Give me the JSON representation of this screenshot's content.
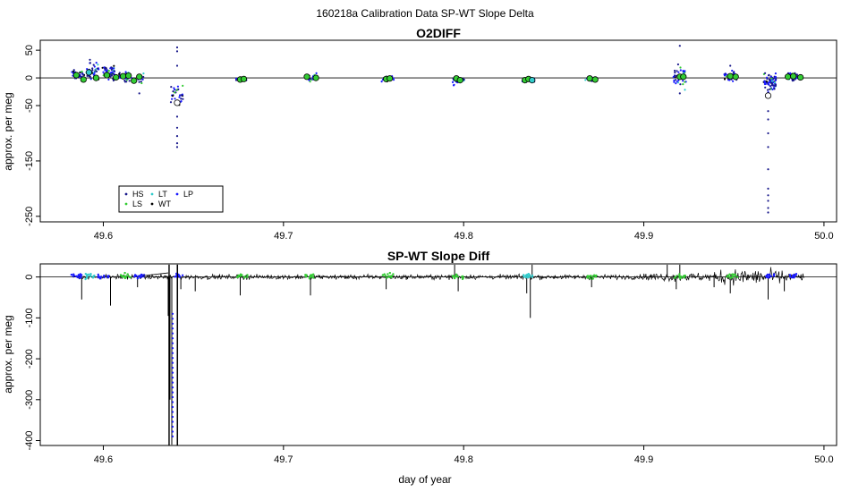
{
  "chart_data": {
    "suptitle": "160218a   Calibration Data SP-WT Slope Delta",
    "xlabel": "day of year",
    "xlim": [
      49.565,
      50.007
    ],
    "x_ticks": [
      "49.6",
      "49.7",
      "49.8",
      "49.9",
      "50.0"
    ],
    "colors": {
      "HS": "#1a1a8c",
      "LS": "#33cc33",
      "LT": "#33cccc",
      "WT": "#000000",
      "LP": "#1a1aff",
      "wt_trace": "#000000"
    },
    "panels": [
      {
        "type": "scatter",
        "title": "O2DIFF",
        "ylabel": "approx. per meg",
        "ylim": [
          -260,
          68
        ],
        "y_ticks": [
          "50",
          "0",
          "-50",
          "-150",
          "-250"
        ],
        "y_tick_values": [
          50,
          0,
          -50,
          -150,
          -250
        ],
        "hline": 0,
        "legend": {
          "position": "bottom-left",
          "entries": [
            {
              "label": "HS",
              "color": "#1a1a8c"
            },
            {
              "label": "LS",
              "color": "#33cc33"
            },
            {
              "label": "LT",
              "color": "#33cccc"
            },
            {
              "label": "WT",
              "color": "#000000"
            },
            {
              "label": "LP",
              "color": "#1a1aff"
            }
          ]
        },
        "clusters": [
          {
            "x": 49.586,
            "y": 6,
            "spread": 6,
            "n": 30
          },
          {
            "x": 49.594,
            "y": 12,
            "spread": 12,
            "n": 40
          },
          {
            "x": 49.603,
            "y": 10,
            "spread": 10,
            "n": 50
          },
          {
            "x": 49.612,
            "y": 4,
            "spread": 7,
            "n": 30
          },
          {
            "x": 49.619,
            "y": -2,
            "spread": 7,
            "n": 20
          },
          {
            "x": 49.641,
            "y": -30,
            "spread": 12,
            "n": 30
          },
          {
            "x": 49.677,
            "y": -3,
            "spread": 2,
            "n": 12
          },
          {
            "x": 49.715,
            "y": 0,
            "spread": 6,
            "n": 25
          },
          {
            "x": 49.758,
            "y": -2,
            "spread": 3,
            "n": 18
          },
          {
            "x": 49.797,
            "y": -3,
            "spread": 6,
            "n": 25
          },
          {
            "x": 49.836,
            "y": -4,
            "spread": 3,
            "n": 18
          },
          {
            "x": 49.871,
            "y": -3,
            "spread": 3,
            "n": 18
          },
          {
            "x": 49.92,
            "y": 4,
            "spread": 16,
            "n": 35
          },
          {
            "x": 49.948,
            "y": 3,
            "spread": 6,
            "n": 30
          },
          {
            "x": 49.97,
            "y": -10,
            "spread": 12,
            "n": 80
          },
          {
            "x": 49.983,
            "y": 2,
            "spread": 6,
            "n": 40
          }
        ],
        "outliers": [
          {
            "x": 49.641,
            "y": 55
          },
          {
            "x": 49.641,
            "y": 48
          },
          {
            "x": 49.641,
            "y": 22
          },
          {
            "x": 49.641,
            "y": -70
          },
          {
            "x": 49.641,
            "y": -90
          },
          {
            "x": 49.641,
            "y": -105
          },
          {
            "x": 49.641,
            "y": -118
          },
          {
            "x": 49.641,
            "y": -125
          },
          {
            "x": 49.92,
            "y": 58
          },
          {
            "x": 49.92,
            "y": -28
          },
          {
            "x": 49.948,
            "y": 22
          },
          {
            "x": 49.969,
            "y": -60
          },
          {
            "x": 49.969,
            "y": -75
          },
          {
            "x": 49.969,
            "y": -100
          },
          {
            "x": 49.969,
            "y": -125
          },
          {
            "x": 49.969,
            "y": -165
          },
          {
            "x": 49.969,
            "y": -200
          },
          {
            "x": 49.969,
            "y": -212
          },
          {
            "x": 49.969,
            "y": -222
          },
          {
            "x": 49.969,
            "y": -235
          },
          {
            "x": 49.969,
            "y": -243
          },
          {
            "x": 49.62,
            "y": -28
          }
        ],
        "circles": [
          {
            "x": 49.585,
            "y": 5,
            "fill": "#33cc33"
          },
          {
            "x": 49.589,
            "y": -3,
            "fill": "#33cc33"
          },
          {
            "x": 49.592,
            "y": 10,
            "fill": "#33cccc"
          },
          {
            "x": 49.596,
            "y": 0,
            "fill": "#33cc33"
          },
          {
            "x": 49.602,
            "y": 5,
            "fill": "#33cc33"
          },
          {
            "x": 49.607,
            "y": 1,
            "fill": "#33cc33"
          },
          {
            "x": 49.611,
            "y": 3,
            "fill": "#33cc33"
          },
          {
            "x": 49.614,
            "y": 4,
            "fill": "#33cc33"
          },
          {
            "x": 49.617,
            "y": -5,
            "fill": "#33cc33"
          },
          {
            "x": 49.62,
            "y": 2,
            "fill": "#33cc33"
          },
          {
            "x": 49.641,
            "y": -45,
            "fill": "#ffffff"
          },
          {
            "x": 49.676,
            "y": -3,
            "fill": "#33cc33"
          },
          {
            "x": 49.678,
            "y": -2,
            "fill": "#33cc33"
          },
          {
            "x": 49.713,
            "y": 2,
            "fill": "#33cc33"
          },
          {
            "x": 49.718,
            "y": 0,
            "fill": "#33cc33"
          },
          {
            "x": 49.757,
            "y": -2,
            "fill": "#33cc33"
          },
          {
            "x": 49.759,
            "y": -1,
            "fill": "#33cc33"
          },
          {
            "x": 49.796,
            "y": -1,
            "fill": "#33cc33"
          },
          {
            "x": 49.798,
            "y": -4,
            "fill": "#33cc33"
          },
          {
            "x": 49.834,
            "y": -4,
            "fill": "#33cc33"
          },
          {
            "x": 49.836,
            "y": -2,
            "fill": "#33cc33"
          },
          {
            "x": 49.838,
            "y": -4,
            "fill": "#33cccc"
          },
          {
            "x": 49.87,
            "y": -1,
            "fill": "#33cc33"
          },
          {
            "x": 49.873,
            "y": -3,
            "fill": "#33cc33"
          },
          {
            "x": 49.92,
            "y": 2,
            "fill": "#33cc33"
          },
          {
            "x": 49.922,
            "y": 2,
            "fill": "#33cc33"
          },
          {
            "x": 49.948,
            "y": 3,
            "fill": "#33cc33"
          },
          {
            "x": 49.951,
            "y": 2,
            "fill": "#33cc33"
          },
          {
            "x": 49.969,
            "y": -32,
            "fill": "#ffffff"
          },
          {
            "x": 49.98,
            "y": 2,
            "fill": "#33cc33"
          },
          {
            "x": 49.983,
            "y": 3,
            "fill": "#33cc33"
          },
          {
            "x": 49.987,
            "y": 1,
            "fill": "#33cc33"
          }
        ]
      },
      {
        "type": "line",
        "title": "SP-WT Slope Diff",
        "ylabel": "approx. per meg",
        "ylim": [
          -412,
          32
        ],
        "y_ticks": [
          "0",
          "-100",
          "-200",
          "-300",
          "-400"
        ],
        "y_tick_values": [
          0,
          -100,
          -200,
          -300,
          -400
        ],
        "hline": 0,
        "series": [
          {
            "name": "WT",
            "x_range": [
              49.583,
              49.989
            ],
            "y_center": 0,
            "noise": 4
          },
          {
            "name": "LP",
            "x_range": [
              49.583,
              49.989
            ],
            "y_center": 3,
            "noise": 4
          }
        ],
        "spikes": [
          {
            "x": 49.588,
            "y": -55
          },
          {
            "x": 49.604,
            "y": -70
          },
          {
            "x": 49.619,
            "y": -25
          },
          {
            "x": 49.636,
            "y": -95
          },
          {
            "x": 49.637,
            "y": -300
          },
          {
            "x": 49.638,
            "y": -410
          },
          {
            "x": 49.641,
            "y": -412
          },
          {
            "x": 49.641,
            "y": 30
          },
          {
            "x": 49.643,
            "y": -30
          },
          {
            "x": 49.651,
            "y": -35
          },
          {
            "x": 49.676,
            "y": -45
          },
          {
            "x": 49.715,
            "y": -45
          },
          {
            "x": 49.757,
            "y": -30
          },
          {
            "x": 49.797,
            "y": -35
          },
          {
            "x": 49.835,
            "y": -40
          },
          {
            "x": 49.837,
            "y": -100
          },
          {
            "x": 49.871,
            "y": -25
          },
          {
            "x": 49.918,
            "y": -30
          },
          {
            "x": 49.939,
            "y": -25
          },
          {
            "x": 49.948,
            "y": -40
          },
          {
            "x": 49.969,
            "y": -55
          },
          {
            "x": 49.978,
            "y": -35
          },
          {
            "x": 49.838,
            "y": 30
          },
          {
            "x": 49.795,
            "y": 30
          },
          {
            "x": 49.913,
            "y": 30
          },
          {
            "x": 49.92,
            "y": 30
          }
        ],
        "colored_bursts": [
          {
            "x": 49.585,
            "color": "#1a1aff"
          },
          {
            "x": 49.592,
            "color": "#33cccc"
          },
          {
            "x": 49.6,
            "color": "#1a1aff"
          },
          {
            "x": 49.612,
            "color": "#33cc33"
          },
          {
            "x": 49.62,
            "color": "#1a1aff"
          },
          {
            "x": 49.642,
            "color": "#1a1aff"
          },
          {
            "x": 49.677,
            "color": "#33cc33"
          },
          {
            "x": 49.715,
            "color": "#33cc33"
          },
          {
            "x": 49.758,
            "color": "#33cc33"
          },
          {
            "x": 49.797,
            "color": "#33cc33"
          },
          {
            "x": 49.836,
            "color": "#33cccc"
          },
          {
            "x": 49.871,
            "color": "#33cc33"
          },
          {
            "x": 49.92,
            "color": "#33cc33"
          },
          {
            "x": 49.949,
            "color": "#33cc33"
          },
          {
            "x": 49.97,
            "color": "#1a1aff"
          },
          {
            "x": 49.984,
            "color": "#1a1aff"
          }
        ]
      }
    ]
  }
}
